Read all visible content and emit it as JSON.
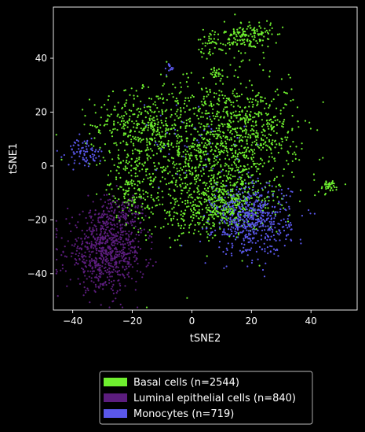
{
  "chart_data": {
    "type": "scatter",
    "title": "",
    "xlabel": "tSNE2",
    "ylabel": "tSNE1",
    "xlim": [
      -46.5,
      55.5
    ],
    "ylim": [
      -53.5,
      59
    ],
    "xticks": [
      -40,
      -20,
      0,
      20,
      40
    ],
    "yticks": [
      -40,
      -20,
      0,
      20,
      40
    ],
    "grid": false,
    "legend_position": "bottom-center-outside",
    "background": "#000000",
    "series": [
      {
        "name": "Basal cells (n=2544)",
        "color": "#6fef2f",
        "clusters": [
          {
            "cx": 5,
            "cy": 5,
            "sx": 13,
            "sy": 14,
            "n": 1150
          },
          {
            "cx": -18,
            "cy": 15,
            "sx": 8,
            "sy": 6,
            "n": 280
          },
          {
            "cx": 22,
            "cy": 14,
            "sx": 7,
            "sy": 8,
            "n": 260
          },
          {
            "cx": -20,
            "cy": -9,
            "sx": 4,
            "sy": 6,
            "n": 150
          },
          {
            "cx": 19,
            "cy": 48,
            "sx": 4,
            "sy": 3,
            "n": 160
          },
          {
            "cx": 7,
            "cy": 46,
            "sx": 2.5,
            "sy": 2.5,
            "n": 50
          },
          {
            "cx": 8,
            "cy": 34,
            "sx": 2,
            "sy": 1.5,
            "n": 25
          },
          {
            "cx": 46,
            "cy": -7.5,
            "sx": 2,
            "sy": 1.2,
            "n": 40
          },
          {
            "cx": 0,
            "cy": -20,
            "sx": 5,
            "sy": 3,
            "n": 60
          },
          {
            "cx": 12,
            "cy": -14,
            "sx": 8,
            "sy": 5,
            "n": 369
          }
        ]
      },
      {
        "name": "Luminal epithelial cells (n=840)",
        "color": "#5c1d7e",
        "clusters": [
          {
            "cx": -29,
            "cy": -32,
            "sx": 6.5,
            "sy": 7,
            "n": 720
          },
          {
            "cx": -24,
            "cy": -18,
            "sx": 4,
            "sy": 4,
            "n": 120
          }
        ]
      },
      {
        "name": "Monocytes (n=719)",
        "color": "#5a57eb",
        "clusters": [
          {
            "cx": 20,
            "cy": -20,
            "sx": 6.5,
            "sy": 6.5,
            "n": 580
          },
          {
            "cx": -36,
            "cy": 5,
            "sx": 3,
            "sy": 2.5,
            "n": 80
          },
          {
            "cx": 2,
            "cy": 8,
            "sx": 10,
            "sy": 10,
            "n": 45
          },
          {
            "cx": -7.5,
            "cy": 36,
            "sx": 0.8,
            "sy": 1,
            "n": 14
          }
        ]
      }
    ]
  }
}
